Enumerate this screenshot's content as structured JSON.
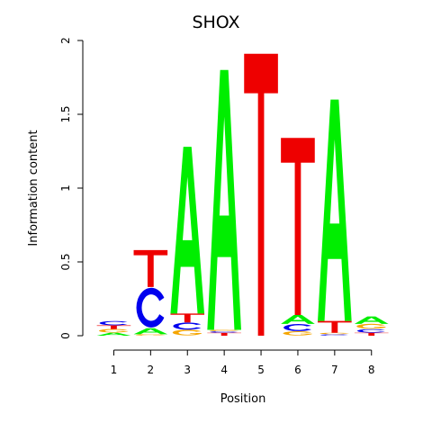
{
  "chart_data": {
    "type": "sequence-logo",
    "title": "SHOX",
    "xlabel": "Position",
    "ylabel": "Information content",
    "ylim": [
      0,
      2
    ],
    "yticks": [
      "0",
      "0.5",
      "1",
      "1.5",
      "2"
    ],
    "xticks": [
      "1",
      "2",
      "3",
      "4",
      "5",
      "6",
      "7",
      "8"
    ],
    "base_colors": {
      "A": "#00ee00",
      "C": "#0000ee",
      "G": "#f5a500",
      "T": "#ee0000"
    },
    "positions": [
      {
        "pos": 1,
        "letters": [
          {
            "base": "A",
            "height": 0.02
          },
          {
            "base": "G",
            "height": 0.025
          },
          {
            "base": "T",
            "height": 0.025
          },
          {
            "base": "C",
            "height": 0.03
          }
        ]
      },
      {
        "pos": 2,
        "letters": [
          {
            "base": "G",
            "height": 0.01
          },
          {
            "base": "A",
            "height": 0.04
          },
          {
            "base": "C",
            "height": 0.28
          },
          {
            "base": "T",
            "height": 0.25
          }
        ]
      },
      {
        "pos": 3,
        "letters": [
          {
            "base": "G",
            "height": 0.04
          },
          {
            "base": "C",
            "height": 0.05
          },
          {
            "base": "T",
            "height": 0.06
          },
          {
            "base": "A",
            "height": 1.13
          }
        ]
      },
      {
        "pos": 4,
        "letters": [
          {
            "base": "T",
            "height": 0.02
          },
          {
            "base": "C",
            "height": 0.01
          },
          {
            "base": "G",
            "height": 0.01
          },
          {
            "base": "A",
            "height": 1.76
          }
        ]
      },
      {
        "pos": 5,
        "letters": [
          {
            "base": "T",
            "height": 1.91
          }
        ]
      },
      {
        "pos": 6,
        "letters": [
          {
            "base": "G",
            "height": 0.03
          },
          {
            "base": "C",
            "height": 0.05
          },
          {
            "base": "A",
            "height": 0.06
          },
          {
            "base": "T",
            "height": 1.2
          }
        ]
      },
      {
        "pos": 7,
        "letters": [
          {
            "base": "C",
            "height": 0.01
          },
          {
            "base": "G",
            "height": 0.01
          },
          {
            "base": "T",
            "height": 0.08
          },
          {
            "base": "A",
            "height": 1.5
          }
        ]
      },
      {
        "pos": 8,
        "letters": [
          {
            "base": "T",
            "height": 0.02
          },
          {
            "base": "C",
            "height": 0.025
          },
          {
            "base": "G",
            "height": 0.035
          },
          {
            "base": "A",
            "height": 0.05
          }
        ]
      }
    ]
  }
}
